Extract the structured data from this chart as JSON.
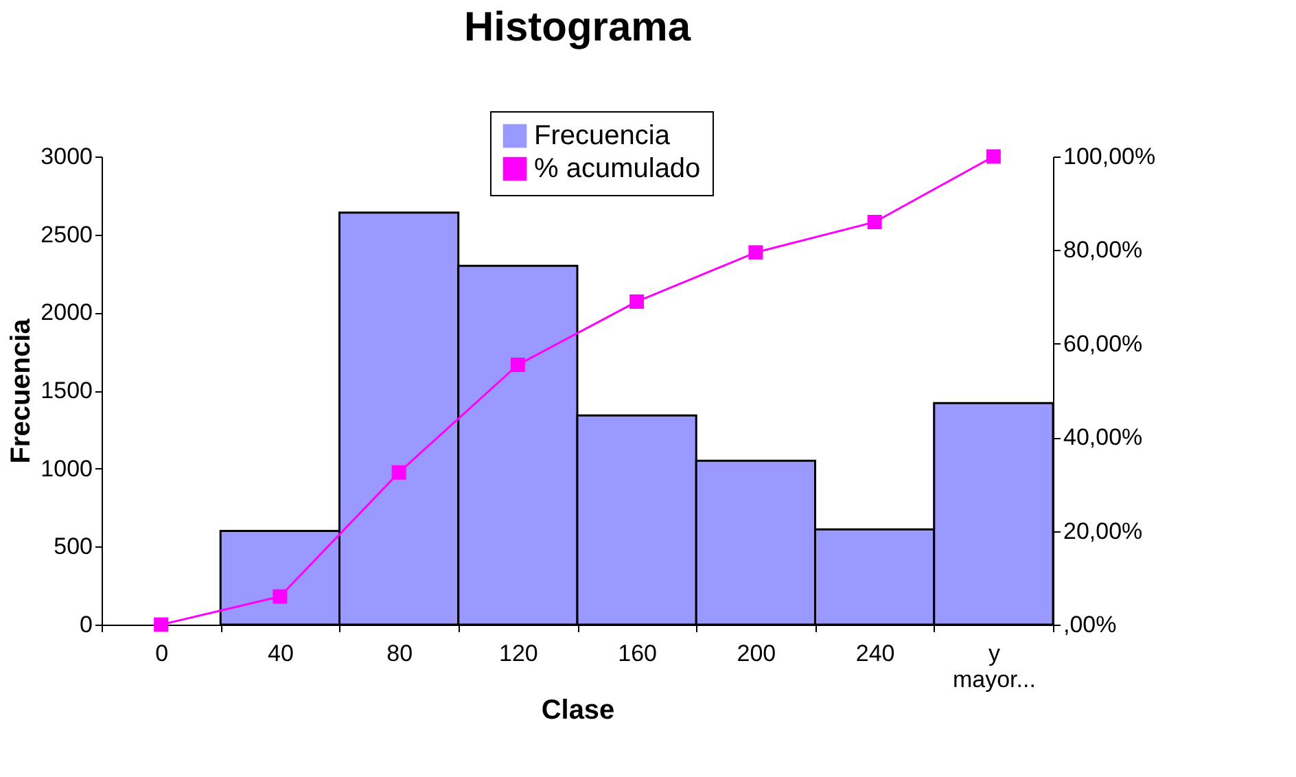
{
  "chart_data": {
    "type": "bar",
    "title": "Histograma",
    "xlabel": "Clase",
    "ylabel": "Frecuencia",
    "categories": [
      "0",
      "40",
      "80",
      "120",
      "160",
      "200",
      "240",
      "y mayor..."
    ],
    "series": [
      {
        "name": "Frecuencia",
        "color": "#9999ff",
        "values": [
          0,
          600,
          2640,
          2300,
          1340,
          1050,
          610,
          1420
        ]
      },
      {
        "name": "% acumulado",
        "type": "line",
        "axis": "y2",
        "color": "#ff00ff",
        "marker": "square",
        "values": [
          0,
          6,
          32.5,
          55.5,
          69,
          79.5,
          86,
          100
        ]
      }
    ],
    "ylim": [
      0,
      3000
    ],
    "yticks": [
      0,
      500,
      1000,
      1500,
      2000,
      2500,
      3000
    ],
    "y2lim": [
      0,
      100
    ],
    "y2ticks": [
      {
        "value": 0,
        "label": ",00%"
      },
      {
        "value": 20,
        "label": "20,00%"
      },
      {
        "value": 40,
        "label": "40,00%"
      },
      {
        "value": 60,
        "label": "60,00%"
      },
      {
        "value": 80,
        "label": "80,00%"
      },
      {
        "value": 100,
        "label": "100,00%"
      }
    ],
    "grid": false,
    "legend": "top"
  }
}
